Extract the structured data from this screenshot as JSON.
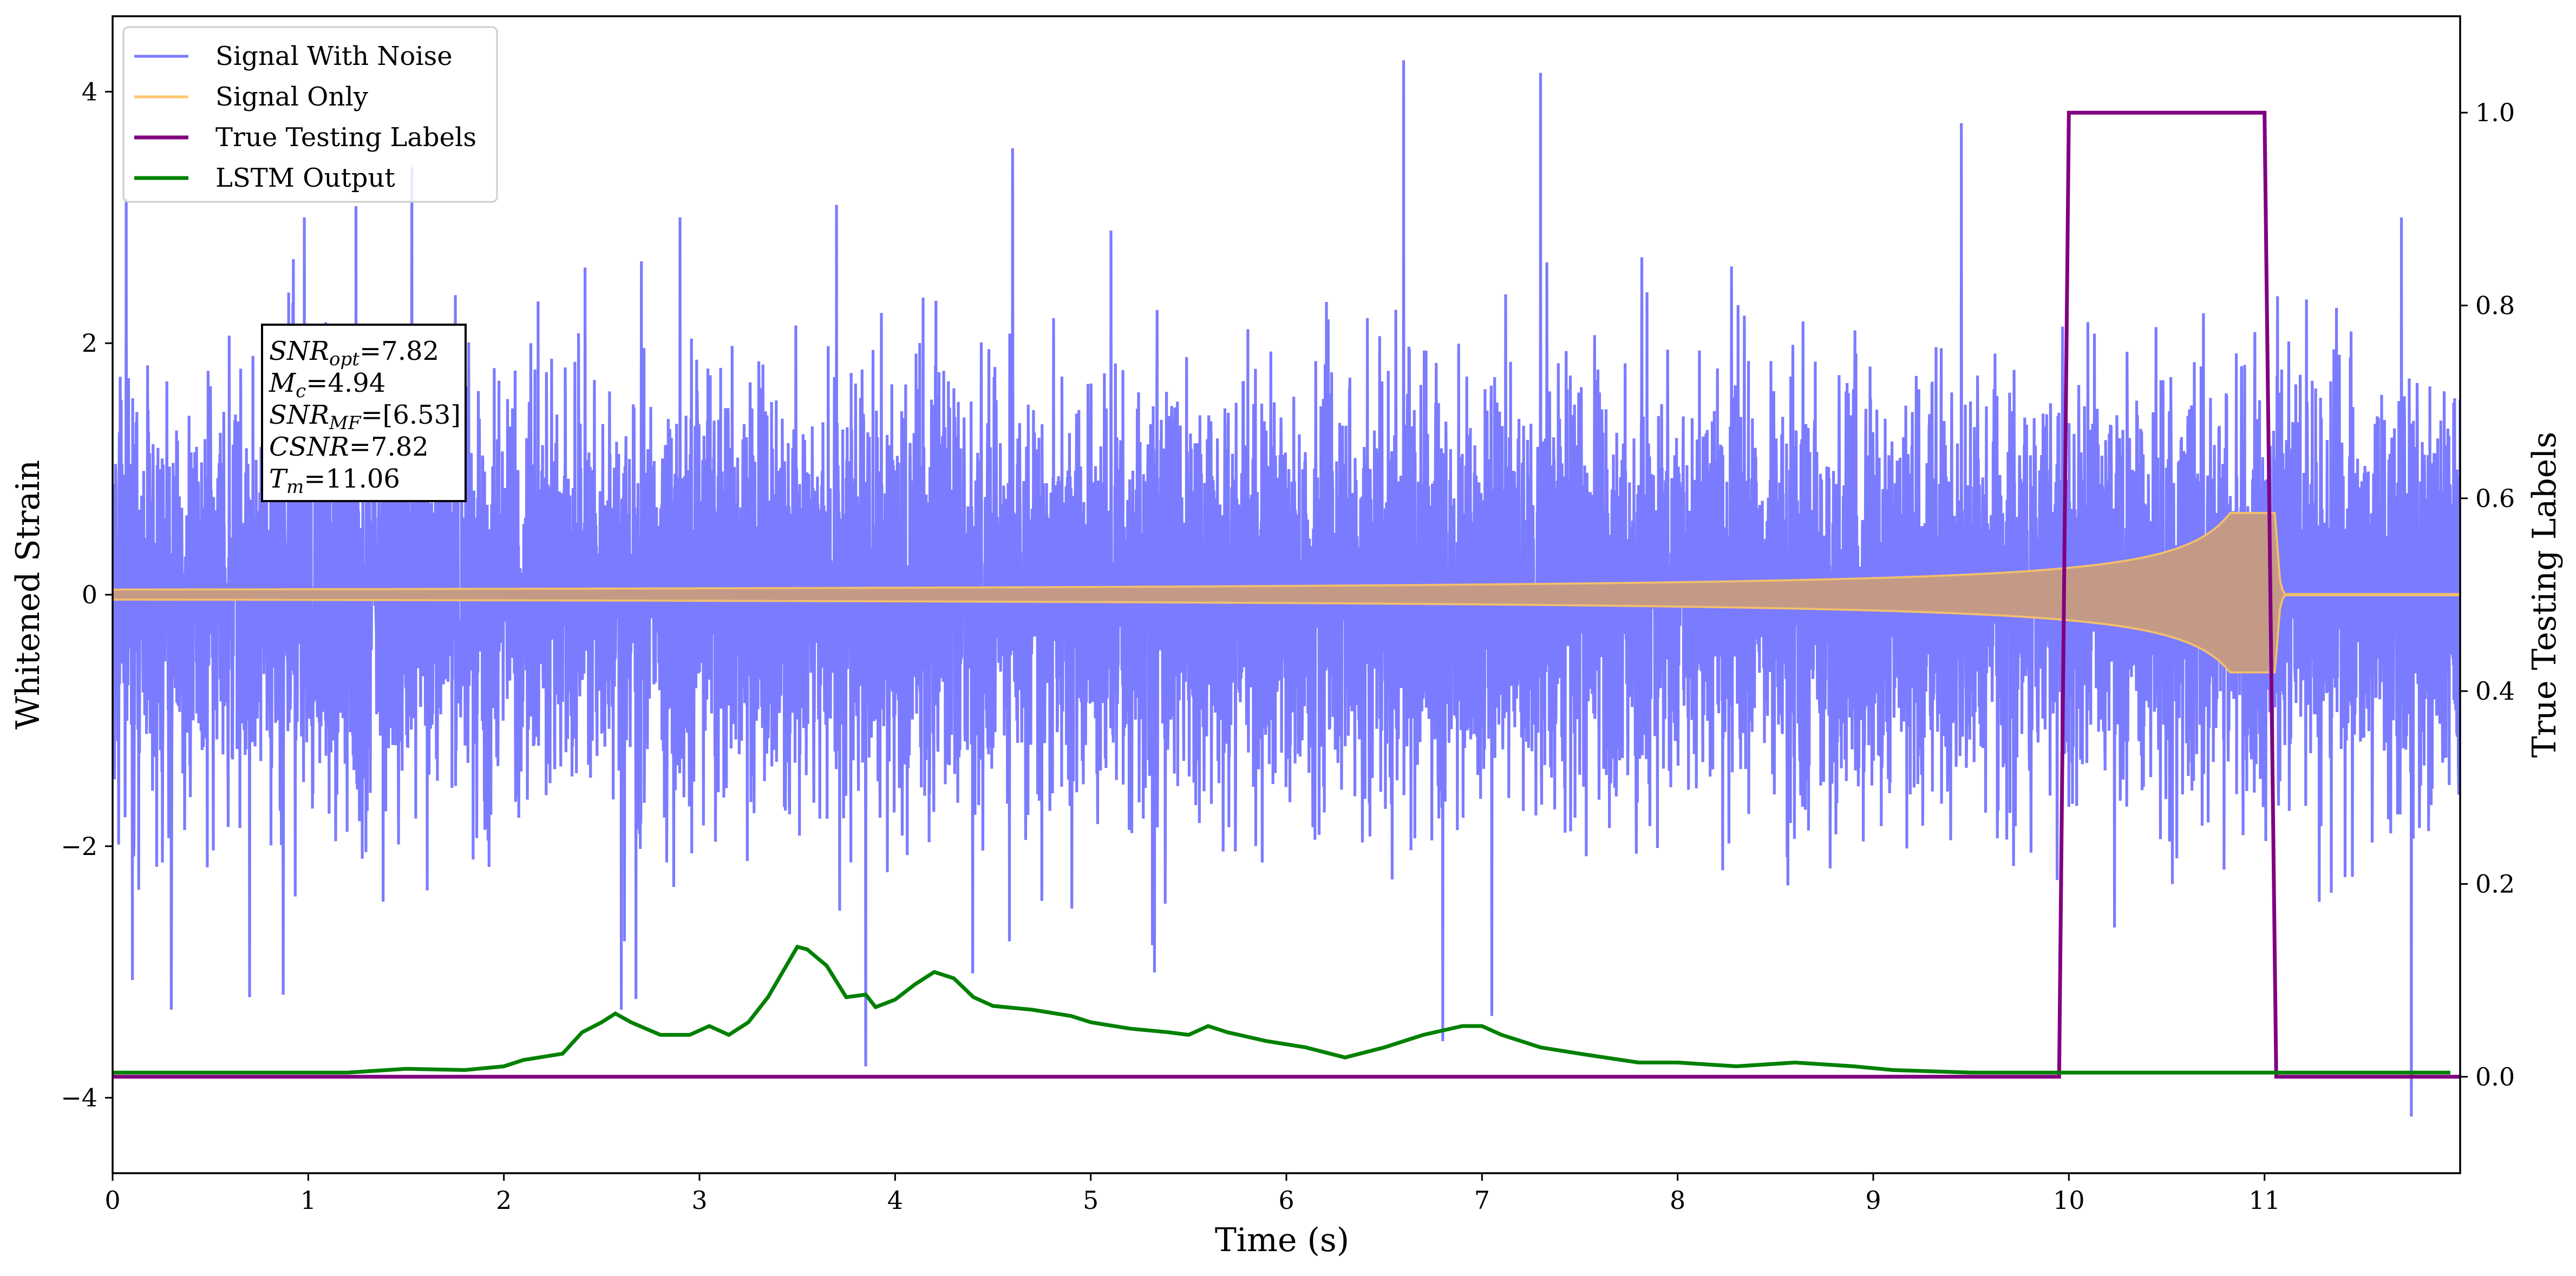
{
  "chart_data": {
    "type": "line",
    "xlabel": "Time (s)",
    "ylabel_left": "Whitened Strain",
    "ylabel_right": "True Testing Labels",
    "xlim": [
      0,
      12
    ],
    "ylim_left": [
      -4.6,
      4.6
    ],
    "ylim_right": [
      -0.1,
      1.1
    ],
    "x_ticks": [
      0,
      1,
      2,
      3,
      4,
      5,
      6,
      7,
      8,
      9,
      10,
      11
    ],
    "y_ticks_left": [
      -4,
      -2,
      0,
      2,
      4
    ],
    "y_tick_labels_left": [
      "−4",
      "−2",
      "0",
      "2",
      "4"
    ],
    "y_ticks_right": [
      0.0,
      0.2,
      0.4,
      0.6,
      0.8,
      1.0
    ],
    "y_tick_labels_right": [
      "0.0",
      "0.2",
      "0.4",
      "0.6",
      "0.8",
      "1.0"
    ],
    "grid": false,
    "legend": {
      "position": "top-left",
      "entries": [
        "Signal With Noise",
        "Signal Only",
        "True Testing Labels",
        "LSTM Output"
      ]
    },
    "colors": {
      "noise": "#7b7bff",
      "signal": "#ffc870",
      "signal_overlap": "#c49a86",
      "labels": "#800080",
      "lstm": "#008000"
    },
    "annotation": {
      "lines": [
        {
          "var": "SNR",
          "sub": "opt",
          "value": "=7.82"
        },
        {
          "var": "M",
          "sub": "c",
          "value": "=4.94"
        },
        {
          "var": "SNR",
          "sub": "MF",
          "value": "=[6.53]"
        },
        {
          "var": "CSNR",
          "sub": "",
          "value": "=7.82"
        },
        {
          "var": "T",
          "sub": "m",
          "value": "=11.06"
        }
      ]
    },
    "series": [
      {
        "name": "Signal With Noise",
        "axis": "left",
        "style": "noise-band",
        "approx_std": 0.9,
        "approx_min": -4.15,
        "approx_max": 4.25,
        "notable_peaks": [
          {
            "x": 0.07,
            "y": 3.15
          },
          {
            "x": 0.98,
            "y": 3.0
          },
          {
            "x": 1.53,
            "y": 3.4
          },
          {
            "x": 2.9,
            "y": 3.0
          },
          {
            "x": 3.7,
            "y": 3.1
          },
          {
            "x": 4.6,
            "y": 3.55
          },
          {
            "x": 6.6,
            "y": 4.25
          },
          {
            "x": 7.3,
            "y": 4.15
          },
          {
            "x": 9.45,
            "y": 3.75
          },
          {
            "x": 11.7,
            "y": 3.0
          }
        ],
        "notable_troughs": [
          {
            "x": 0.3,
            "y": -3.3
          },
          {
            "x": 0.7,
            "y": -3.2
          },
          {
            "x": 2.6,
            "y": -3.3
          },
          {
            "x": 3.85,
            "y": -3.75
          },
          {
            "x": 6.8,
            "y": -3.55
          },
          {
            "x": 7.05,
            "y": -3.35
          },
          {
            "x": 11.75,
            "y": -4.15
          }
        ]
      },
      {
        "name": "Signal Only",
        "axis": "left",
        "style": "chirp",
        "start_amplitude": 0.04,
        "merger_time": 11.06,
        "merger_amplitude": 0.65
      },
      {
        "name": "True Testing Labels",
        "axis": "right",
        "x": [
          0,
          9.95,
          10.0,
          11.0,
          11.06,
          12
        ],
        "y": [
          0,
          0,
          1,
          1,
          0,
          0
        ]
      },
      {
        "name": "LSTM Output",
        "axis": "left",
        "x": [
          0,
          0.5,
          1.0,
          1.2,
          1.5,
          1.8,
          2.0,
          2.1,
          2.3,
          2.4,
          2.5,
          2.57,
          2.65,
          2.8,
          2.95,
          3.05,
          3.15,
          3.25,
          3.35,
          3.5,
          3.55,
          3.65,
          3.75,
          3.85,
          3.9,
          4.0,
          4.1,
          4.2,
          4.3,
          4.4,
          4.5,
          4.7,
          4.9,
          5.0,
          5.2,
          5.4,
          5.5,
          5.6,
          5.7,
          5.9,
          6.1,
          6.3,
          6.5,
          6.7,
          6.9,
          7.0,
          7.1,
          7.3,
          7.5,
          7.8,
          8.0,
          8.3,
          8.6,
          8.9,
          9.1,
          9.5,
          9.9,
          10.0,
          10.5,
          11.0,
          11.5,
          12.0
        ],
        "y": [
          -3.8,
          -3.8,
          -3.8,
          -3.8,
          -3.77,
          -3.78,
          -3.75,
          -3.7,
          -3.65,
          -3.48,
          -3.4,
          -3.33,
          -3.4,
          -3.5,
          -3.5,
          -3.43,
          -3.5,
          -3.4,
          -3.2,
          -2.8,
          -2.82,
          -2.95,
          -3.2,
          -3.18,
          -3.28,
          -3.22,
          -3.1,
          -3.0,
          -3.05,
          -3.2,
          -3.27,
          -3.3,
          -3.35,
          -3.4,
          -3.45,
          -3.48,
          -3.5,
          -3.43,
          -3.48,
          -3.55,
          -3.6,
          -3.68,
          -3.6,
          -3.5,
          -3.43,
          -3.43,
          -3.5,
          -3.6,
          -3.65,
          -3.72,
          -3.72,
          -3.75,
          -3.72,
          -3.75,
          -3.78,
          -3.8,
          -3.8,
          -3.8,
          -3.8,
          -3.8,
          -3.8,
          -3.8
        ]
      }
    ]
  }
}
